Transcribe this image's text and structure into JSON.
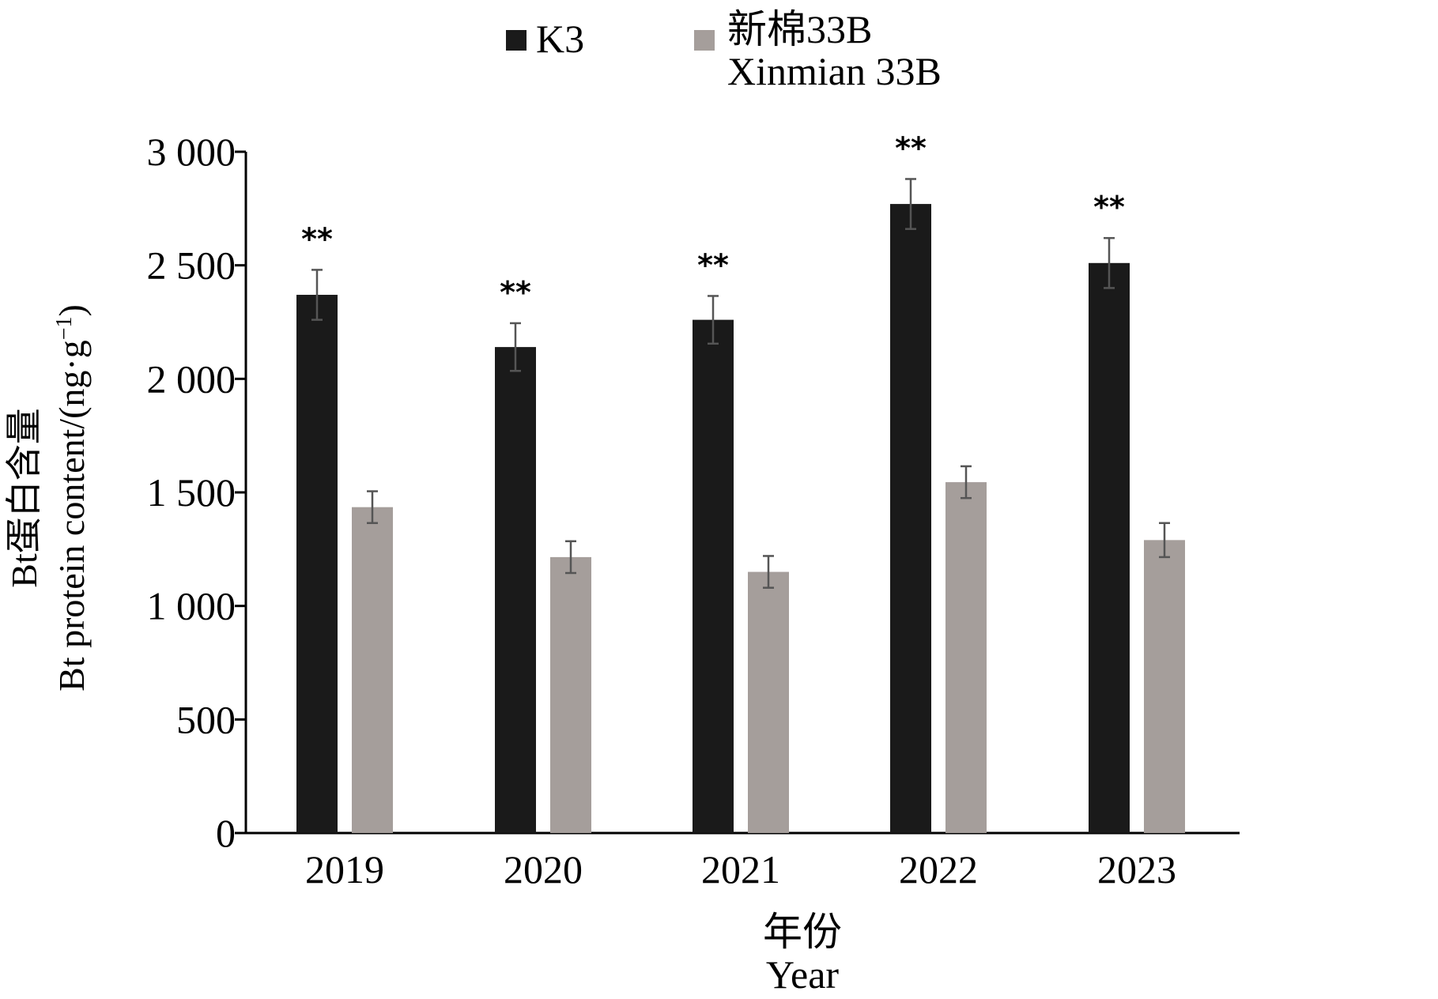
{
  "chart_data": {
    "type": "bar",
    "categories": [
      "2019",
      "2020",
      "2021",
      "2022",
      "2023"
    ],
    "series": [
      {
        "name": "K3",
        "name_en": "",
        "color": "#1a1a1a",
        "values": [
          2370,
          2140,
          2260,
          2770,
          2510
        ],
        "errors": [
          110,
          105,
          105,
          110,
          110
        ]
      },
      {
        "name": "新棉33B",
        "name_en": "Xinmian 33B",
        "color": "#a59e9b",
        "values": [
          1435,
          1215,
          1150,
          1545,
          1290
        ],
        "errors": [
          70,
          70,
          70,
          70,
          75
        ]
      }
    ],
    "significance": [
      "**",
      "**",
      "**",
      "**",
      "**"
    ],
    "ylim": [
      0,
      3000
    ],
    "yticks": [
      0,
      500,
      1000,
      1500,
      2000,
      2500,
      3000
    ],
    "ytick_labels": [
      "0",
      "500",
      "1 000",
      "1 500",
      "2 000",
      "2 500",
      "3 000"
    ],
    "ylabel_cn": "Bt蛋白含量",
    "ylabel_en": "Bt protein content/(ng·g",
    "ylabel_sup": "−1",
    "ylabel_end": ")",
    "xlabel_cn": "年份",
    "xlabel_en": "Year",
    "legend_position": "top-center"
  }
}
